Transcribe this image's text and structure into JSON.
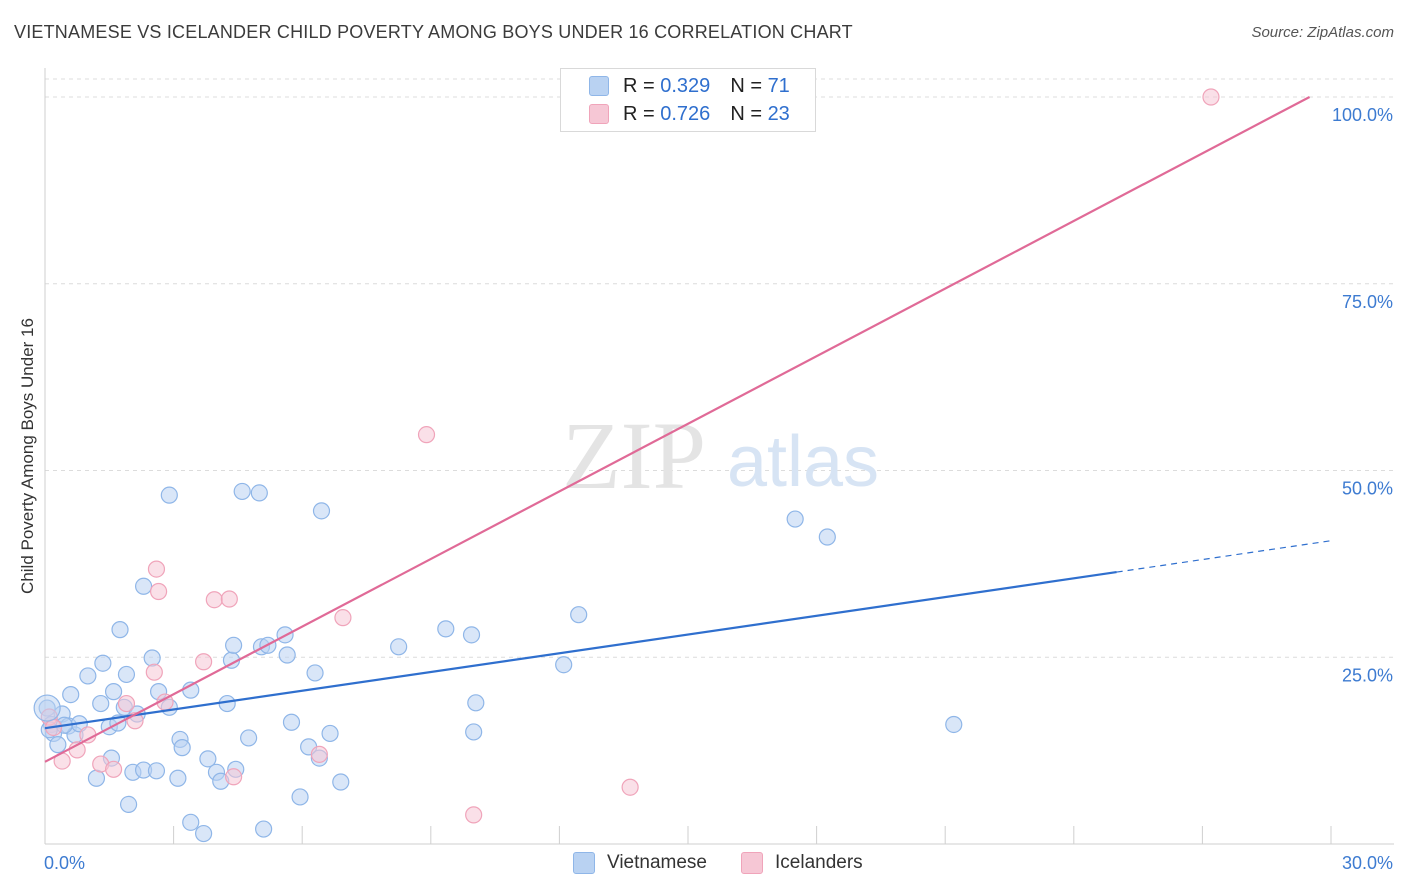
{
  "title": "VIETNAMESE VS ICELANDER CHILD POVERTY AMONG BOYS UNDER 16 CORRELATION CHART",
  "source": "Source: ZipAtlas.com",
  "watermark": {
    "zip": "ZIP",
    "atlas": "atlas"
  },
  "legend_top": [
    {
      "r_label": "R =",
      "r_value": "0.329",
      "n_label": "N =",
      "n_value": "71"
    },
    {
      "r_label": "R =",
      "r_value": "0.726",
      "n_label": "N =",
      "n_value": "23"
    }
  ],
  "legend_bottom": [
    "Vietnamese",
    "Icelanders"
  ],
  "chart_data": {
    "type": "scatter",
    "title": "VIETNAMESE VS ICELANDER CHILD POVERTY AMONG BOYS UNDER 16 CORRELATION CHART",
    "xlabel": "",
    "ylabel": "Child Poverty Among Boys Under 16",
    "xlim": [
      0,
      30
    ],
    "ylim": [
      0,
      100
    ],
    "x_tick_labels": [
      {
        "value": 0,
        "label": "0.0%"
      },
      {
        "value": 30,
        "label": "30.0%"
      }
    ],
    "y_tick_labels": [
      {
        "value": 25,
        "label": "25.0%"
      },
      {
        "value": 50,
        "label": "50.0%"
      },
      {
        "value": 75,
        "label": "75.0%"
      },
      {
        "value": 100,
        "label": "100.0%"
      }
    ],
    "series": [
      {
        "name": "Vietnamese",
        "color": "#8fb6e8",
        "fill": "#b9d2f2",
        "line_color": "#2f6fce",
        "R": 0.329,
        "N": 71,
        "trend": {
          "x0": 0,
          "y0": 15.5,
          "x1": 25,
          "y1": 36.4,
          "dash_to_x": 30,
          "dash_to_y": 40.6
        },
        "points": [
          [
            0.05,
            18.2
          ],
          [
            0.15,
            16.0
          ],
          [
            0.2,
            14.8
          ],
          [
            0.3,
            13.3
          ],
          [
            0.4,
            17.4
          ],
          [
            0.55,
            15.8
          ],
          [
            0.6,
            20.0
          ],
          [
            0.7,
            14.6
          ],
          [
            0.8,
            16.1
          ],
          [
            1.0,
            22.5
          ],
          [
            1.2,
            8.8
          ],
          [
            1.3,
            18.8
          ],
          [
            1.35,
            24.2
          ],
          [
            1.5,
            15.7
          ],
          [
            1.55,
            11.5
          ],
          [
            1.6,
            20.4
          ],
          [
            1.7,
            16.2
          ],
          [
            1.75,
            28.7
          ],
          [
            1.9,
            22.7
          ],
          [
            1.85,
            18.3
          ],
          [
            1.95,
            5.3
          ],
          [
            2.05,
            9.6
          ],
          [
            2.15,
            17.4
          ],
          [
            2.3,
            9.9
          ],
          [
            2.3,
            34.5
          ],
          [
            2.5,
            24.9
          ],
          [
            2.6,
            9.8
          ],
          [
            2.65,
            20.4
          ],
          [
            2.9,
            18.3
          ],
          [
            2.9,
            46.7
          ],
          [
            3.1,
            8.8
          ],
          [
            3.15,
            14.0
          ],
          [
            3.2,
            12.9
          ],
          [
            3.4,
            20.6
          ],
          [
            3.4,
            2.9
          ],
          [
            3.7,
            1.4
          ],
          [
            3.8,
            11.4
          ],
          [
            4.0,
            9.6
          ],
          [
            4.1,
            8.4
          ],
          [
            4.25,
            18.8
          ],
          [
            4.35,
            24.6
          ],
          [
            4.4,
            26.6
          ],
          [
            4.45,
            10.0
          ],
          [
            4.6,
            47.2
          ],
          [
            4.75,
            14.2
          ],
          [
            5.0,
            47.0
          ],
          [
            5.05,
            26.4
          ],
          [
            5.1,
            2.0
          ],
          [
            5.2,
            26.6
          ],
          [
            5.6,
            28.0
          ],
          [
            5.65,
            25.3
          ],
          [
            5.75,
            16.3
          ],
          [
            5.95,
            6.3
          ],
          [
            6.15,
            13.0
          ],
          [
            6.3,
            22.9
          ],
          [
            6.4,
            11.5
          ],
          [
            6.45,
            44.6
          ],
          [
            6.65,
            14.8
          ],
          [
            6.9,
            8.3
          ],
          [
            8.25,
            26.4
          ],
          [
            9.35,
            28.8
          ],
          [
            9.95,
            28.0
          ],
          [
            10.0,
            15.0
          ],
          [
            10.05,
            18.9
          ],
          [
            12.1,
            24.0
          ],
          [
            12.45,
            30.7
          ],
          [
            17.5,
            43.5
          ],
          [
            18.25,
            41.1
          ],
          [
            21.2,
            16.0
          ],
          [
            0.1,
            15.3
          ],
          [
            0.45,
            15.9
          ]
        ]
      },
      {
        "name": "Icelanders",
        "color": "#f0a4ba",
        "fill": "#f6c7d5",
        "line_color": "#e06a97",
        "R": 0.726,
        "N": 23,
        "trend": {
          "x0": 0,
          "y0": 11.0,
          "x1": 29.5,
          "y1": 100.0
        },
        "points": [
          [
            0.1,
            17.0
          ],
          [
            0.4,
            11.1
          ],
          [
            0.75,
            12.6
          ],
          [
            1.0,
            14.6
          ],
          [
            1.3,
            10.7
          ],
          [
            1.6,
            10.0
          ],
          [
            1.9,
            18.8
          ],
          [
            2.1,
            16.5
          ],
          [
            2.55,
            23.0
          ],
          [
            2.6,
            36.8
          ],
          [
            2.65,
            33.8
          ],
          [
            2.8,
            19.0
          ],
          [
            3.7,
            24.4
          ],
          [
            3.95,
            32.7
          ],
          [
            4.3,
            32.8
          ],
          [
            4.4,
            9.0
          ],
          [
            6.4,
            12.0
          ],
          [
            6.95,
            30.3
          ],
          [
            8.9,
            54.8
          ],
          [
            10.0,
            3.9
          ],
          [
            13.65,
            7.6
          ],
          [
            27.2,
            100.0
          ],
          [
            0.2,
            15.6
          ]
        ]
      }
    ]
  }
}
